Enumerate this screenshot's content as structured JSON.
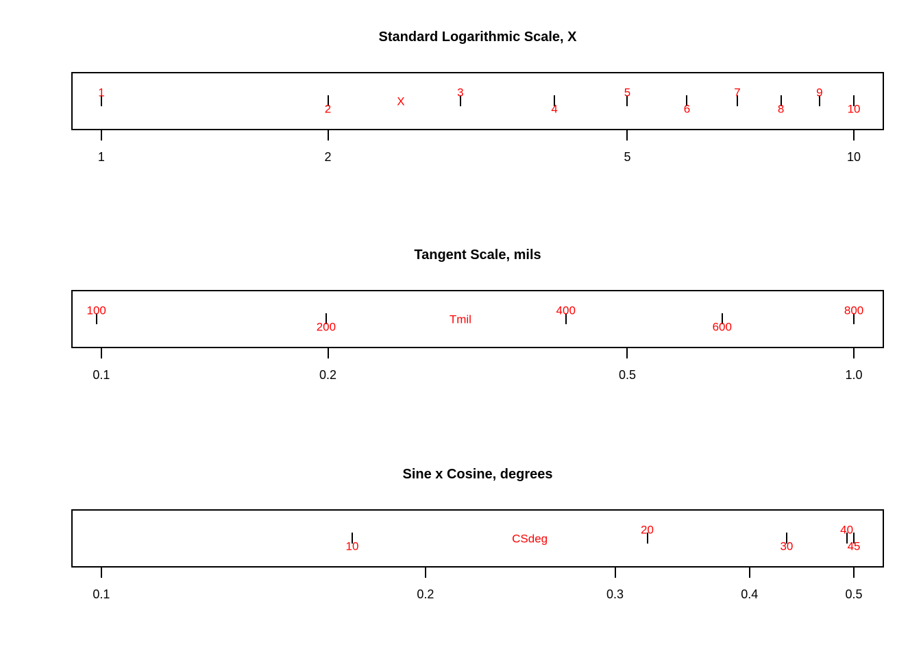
{
  "figure": {
    "background": "#ffffff"
  },
  "colors": {
    "data_label": "#ff0000",
    "axis": "#000000",
    "frame": "#000000"
  },
  "chart_data": [
    {
      "type": "rug",
      "title": "Standard Logarithmic Scale, X",
      "x_scale": "log10",
      "xlim": [
        1,
        10
      ],
      "grid": false,
      "series_label": {
        "text": "X",
        "at": 2.5
      },
      "points": [
        {
          "value": 1,
          "label": "1",
          "label_side": "above"
        },
        {
          "value": 2,
          "label": "2",
          "label_side": "below"
        },
        {
          "value": 3,
          "label": "3",
          "label_side": "above"
        },
        {
          "value": 4,
          "label": "4",
          "label_side": "below"
        },
        {
          "value": 5,
          "label": "5",
          "label_side": "above"
        },
        {
          "value": 6,
          "label": "6",
          "label_side": "below"
        },
        {
          "value": 7,
          "label": "7",
          "label_side": "above"
        },
        {
          "value": 8,
          "label": "8",
          "label_side": "below"
        },
        {
          "value": 9,
          "label": "9",
          "label_side": "above"
        },
        {
          "value": 10,
          "label": "10",
          "label_side": "below"
        }
      ],
      "axis_ticks": [
        {
          "value": 1,
          "label": "1"
        },
        {
          "value": 2,
          "label": "2"
        },
        {
          "value": 5,
          "label": "5"
        },
        {
          "value": 10,
          "label": "10"
        }
      ]
    },
    {
      "type": "rug",
      "title": "Tangent Scale, mils",
      "x_scale": "log10",
      "xlim": [
        0.1,
        1.0
      ],
      "grid": false,
      "series_label": {
        "text": "Tmil",
        "at": 0.3
      },
      "points": [
        {
          "value": 0.098491,
          "label": "100",
          "label_side": "above"
        },
        {
          "value": 0.198912,
          "label": "200",
          "label_side": "below"
        },
        {
          "value": 0.414214,
          "label": "400",
          "label_side": "above"
        },
        {
          "value": 0.668179,
          "label": "600",
          "label_side": "below"
        },
        {
          "value": 1.0,
          "label": "800",
          "label_side": "above"
        }
      ],
      "axis_ticks": [
        {
          "value": 0.1,
          "label": "0.1"
        },
        {
          "value": 0.2,
          "label": "0.2"
        },
        {
          "value": 0.5,
          "label": "0.5"
        },
        {
          "value": 1.0,
          "label": "1.0"
        }
      ]
    },
    {
      "type": "rug",
      "title": "Sine x Cosine, degrees",
      "x_scale": "log10",
      "xlim": [
        0.1,
        0.5
      ],
      "grid": false,
      "series_label": {
        "text": "CSdeg",
        "at": 0.25
      },
      "points": [
        {
          "value": 0.17101,
          "label": "10",
          "label_side": "below"
        },
        {
          "value": 0.321394,
          "label": "20",
          "label_side": "above"
        },
        {
          "value": 0.433013,
          "label": "30",
          "label_side": "below"
        },
        {
          "value": 0.492404,
          "label": "40",
          "label_side": "above"
        },
        {
          "value": 0.5,
          "label": "45",
          "label_side": "below"
        }
      ],
      "axis_ticks": [
        {
          "value": 0.1,
          "label": "0.1"
        },
        {
          "value": 0.2,
          "label": "0.2"
        },
        {
          "value": 0.3,
          "label": "0.3"
        },
        {
          "value": 0.4,
          "label": "0.4"
        },
        {
          "value": 0.5,
          "label": "0.5"
        }
      ]
    }
  ]
}
